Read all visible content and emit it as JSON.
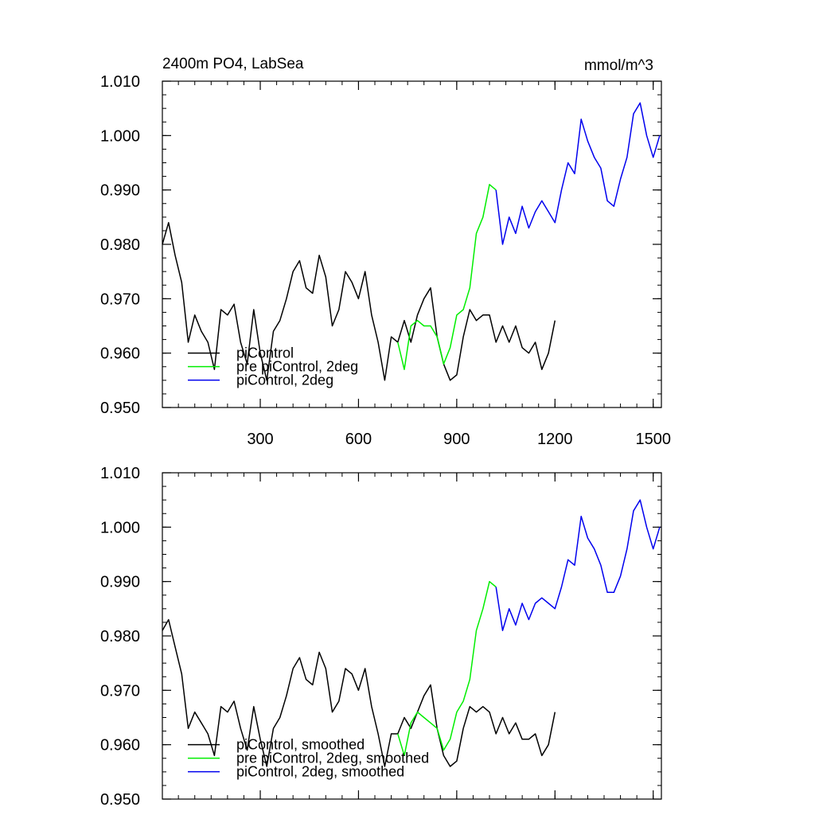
{
  "chart_data": [
    {
      "type": "line",
      "title": "2400m PO4, LabSea",
      "units": "mmol/m^3",
      "xlim": [
        1,
        1525
      ],
      "ylim": [
        0.95,
        1.01
      ],
      "x_ticks": [
        300,
        600,
        900,
        1200,
        1500
      ],
      "x_tick_labels": [
        "300",
        "600",
        "900",
        "1200",
        "1500"
      ],
      "y_ticks": [
        0.95,
        0.96,
        0.97,
        0.98,
        0.99,
        1.0,
        1.01
      ],
      "y_tick_labels": [
        "0.950",
        "0.960",
        "0.970",
        "0.980",
        "0.990",
        "1.000",
        "1.010"
      ],
      "legend_position": "bottom-left",
      "series": [
        {
          "name": "piControl",
          "color": "#000000",
          "x": [
            1,
            20,
            40,
            60,
            80,
            100,
            120,
            140,
            160,
            180,
            200,
            220,
            240,
            260,
            280,
            300,
            320,
            340,
            360,
            380,
            400,
            420,
            440,
            460,
            480,
            500,
            520,
            540,
            560,
            580,
            600,
            620,
            640,
            660,
            680,
            700,
            720,
            740,
            760,
            780,
            800,
            820,
            840,
            860,
            880,
            900,
            920,
            940,
            960,
            980,
            1000,
            1020,
            1040,
            1060,
            1080,
            1100,
            1120,
            1140,
            1160,
            1180,
            1200
          ],
          "y": [
            0.98,
            0.984,
            0.978,
            0.973,
            0.962,
            0.967,
            0.964,
            0.962,
            0.957,
            0.968,
            0.967,
            0.969,
            0.962,
            0.958,
            0.968,
            0.96,
            0.955,
            0.964,
            0.966,
            0.97,
            0.975,
            0.977,
            0.972,
            0.971,
            0.978,
            0.974,
            0.965,
            0.968,
            0.975,
            0.973,
            0.97,
            0.975,
            0.967,
            0.962,
            0.955,
            0.963,
            0.962,
            0.966,
            0.962,
            0.967,
            0.97,
            0.972,
            0.963,
            0.958,
            0.955,
            0.956,
            0.963,
            0.968,
            0.966,
            0.967,
            0.967,
            0.962,
            0.965,
            0.962,
            0.965,
            0.961,
            0.96,
            0.962,
            0.957,
            0.96,
            0.966
          ]
        },
        {
          "name": "pre piControl, 2deg",
          "color": "#00ee00",
          "x": [
            720,
            740,
            760,
            780,
            800,
            820,
            840,
            860,
            880,
            900,
            920,
            940,
            960,
            980,
            1000,
            1020
          ],
          "y": [
            0.962,
            0.957,
            0.965,
            0.966,
            0.965,
            0.965,
            0.963,
            0.958,
            0.961,
            0.967,
            0.968,
            0.972,
            0.982,
            0.985,
            0.991,
            0.99
          ]
        },
        {
          "name": "piControl, 2deg",
          "color": "#0000ee",
          "x": [
            1020,
            1040,
            1060,
            1080,
            1100,
            1120,
            1140,
            1160,
            1180,
            1200,
            1220,
            1240,
            1260,
            1280,
            1300,
            1320,
            1340,
            1360,
            1380,
            1400,
            1420,
            1440,
            1460,
            1480,
            1500,
            1520
          ],
          "y": [
            0.99,
            0.98,
            0.985,
            0.982,
            0.987,
            0.983,
            0.986,
            0.988,
            0.986,
            0.984,
            0.99,
            0.995,
            0.993,
            1.003,
            0.999,
            0.996,
            0.994,
            0.988,
            0.987,
            0.992,
            0.996,
            1.004,
            1.006,
            1.0,
            0.996,
            1.0
          ]
        }
      ]
    },
    {
      "type": "line",
      "title": "",
      "units": "",
      "xlim": [
        1,
        1525
      ],
      "ylim": [
        0.95,
        1.01
      ],
      "x_ticks": [
        300,
        600,
        900,
        1200,
        1500
      ],
      "x_tick_labels": [],
      "y_ticks": [
        0.95,
        0.96,
        0.97,
        0.98,
        0.99,
        1.0,
        1.01
      ],
      "y_tick_labels": [
        "0.950",
        "0.960",
        "0.970",
        "0.980",
        "0.990",
        "1.000",
        "1.010"
      ],
      "legend_position": "bottom-left",
      "series": [
        {
          "name": "piControl, smoothed",
          "color": "#000000",
          "x": [
            1,
            20,
            40,
            60,
            80,
            100,
            120,
            140,
            160,
            180,
            200,
            220,
            240,
            260,
            280,
            300,
            320,
            340,
            360,
            380,
            400,
            420,
            440,
            460,
            480,
            500,
            520,
            540,
            560,
            580,
            600,
            620,
            640,
            660,
            680,
            700,
            720,
            740,
            760,
            780,
            800,
            820,
            840,
            860,
            880,
            900,
            920,
            940,
            960,
            980,
            1000,
            1020,
            1040,
            1060,
            1080,
            1100,
            1120,
            1140,
            1160,
            1180,
            1200
          ],
          "y": [
            0.981,
            0.983,
            0.978,
            0.973,
            0.963,
            0.966,
            0.964,
            0.962,
            0.958,
            0.967,
            0.966,
            0.968,
            0.963,
            0.959,
            0.967,
            0.961,
            0.956,
            0.963,
            0.965,
            0.969,
            0.974,
            0.976,
            0.972,
            0.971,
            0.977,
            0.974,
            0.966,
            0.968,
            0.974,
            0.973,
            0.97,
            0.974,
            0.967,
            0.962,
            0.956,
            0.962,
            0.962,
            0.965,
            0.963,
            0.966,
            0.969,
            0.971,
            0.963,
            0.958,
            0.956,
            0.957,
            0.963,
            0.967,
            0.966,
            0.967,
            0.966,
            0.962,
            0.965,
            0.962,
            0.964,
            0.961,
            0.961,
            0.962,
            0.958,
            0.96,
            0.966
          ]
        },
        {
          "name": "pre piControl, 2deg, smoothed",
          "color": "#00ee00",
          "x": [
            720,
            740,
            760,
            780,
            800,
            820,
            840,
            860,
            880,
            900,
            920,
            940,
            960,
            980,
            1000,
            1020
          ],
          "y": [
            0.962,
            0.958,
            0.964,
            0.966,
            0.965,
            0.964,
            0.963,
            0.959,
            0.961,
            0.966,
            0.968,
            0.972,
            0.981,
            0.985,
            0.99,
            0.989
          ]
        },
        {
          "name": "piControl, 2deg, smoothed",
          "color": "#0000ee",
          "x": [
            1020,
            1040,
            1060,
            1080,
            1100,
            1120,
            1140,
            1160,
            1180,
            1200,
            1220,
            1240,
            1260,
            1280,
            1300,
            1320,
            1340,
            1360,
            1380,
            1400,
            1420,
            1440,
            1460,
            1480,
            1500,
            1520
          ],
          "y": [
            0.989,
            0.981,
            0.985,
            0.982,
            0.986,
            0.983,
            0.986,
            0.987,
            0.986,
            0.985,
            0.989,
            0.994,
            0.993,
            1.002,
            0.998,
            0.996,
            0.993,
            0.988,
            0.988,
            0.991,
            0.996,
            1.003,
            1.005,
            1.0,
            0.996,
            1.0
          ]
        }
      ]
    }
  ]
}
